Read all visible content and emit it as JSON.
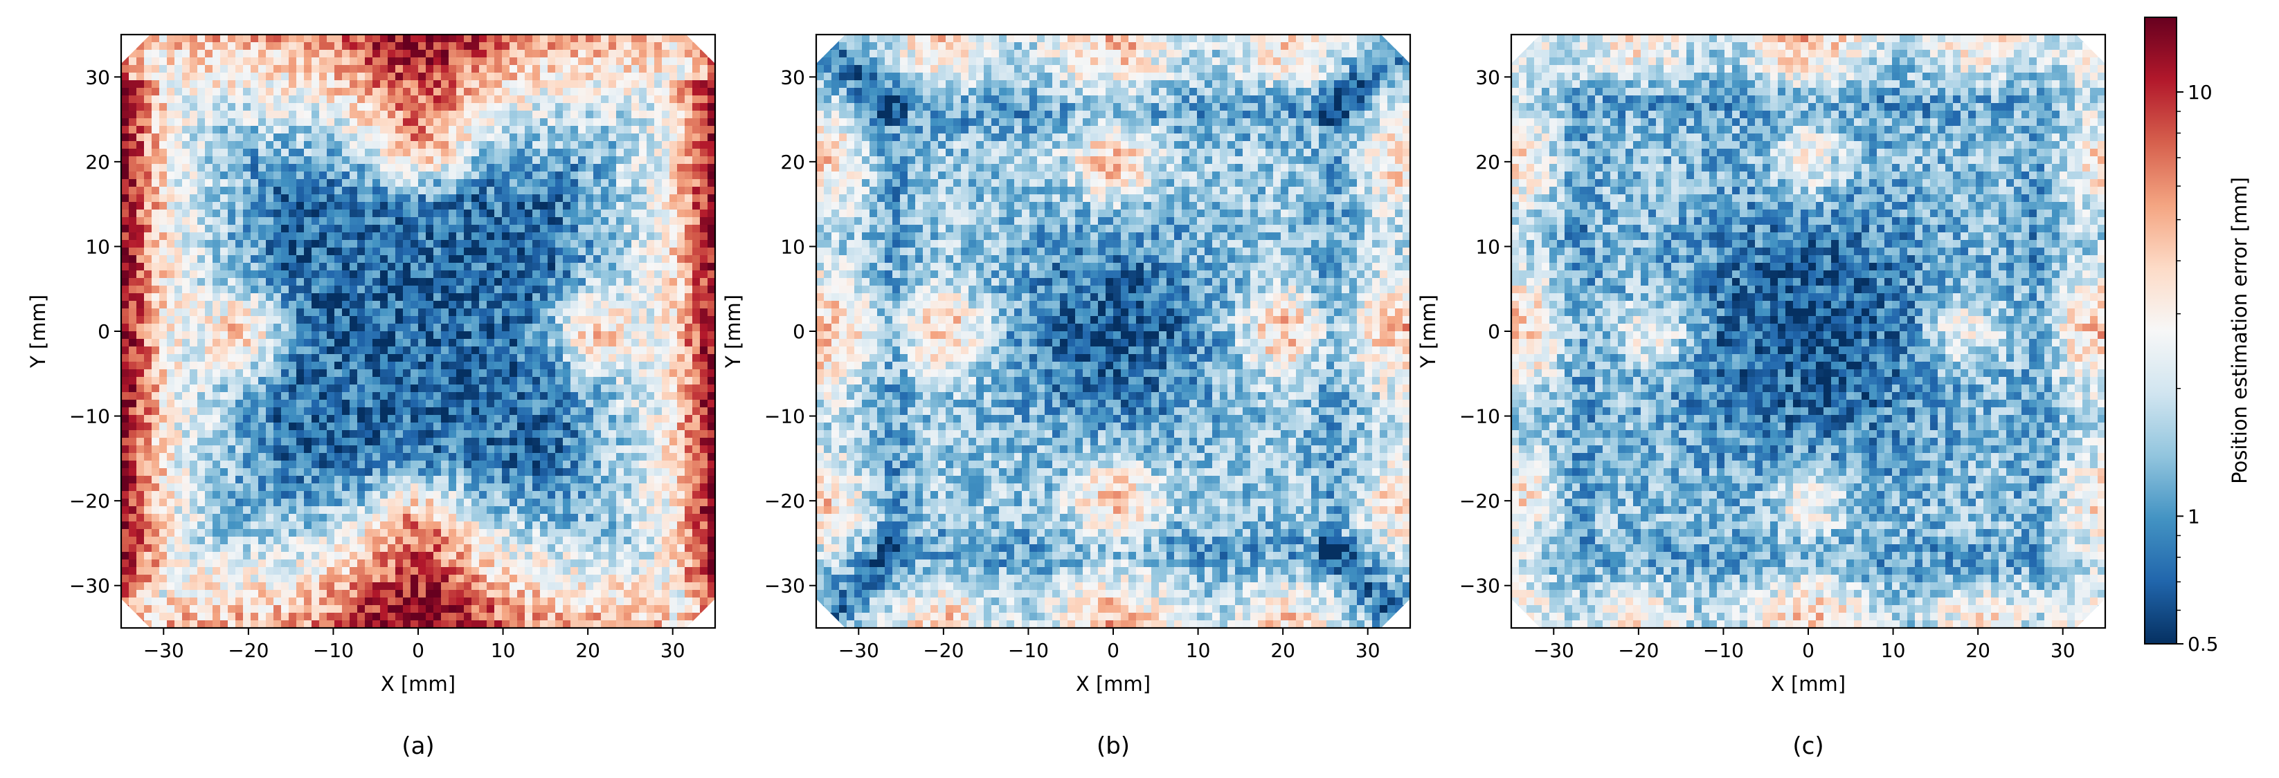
{
  "chart_data": {
    "type": "heatmap",
    "panels": [
      {
        "caption": "(a)",
        "xlabel": "X [mm]",
        "ylabel": "Y [mm]",
        "xlim": [
          -35,
          35
        ],
        "ylim": [
          -35,
          35
        ],
        "xticks": [
          "−30",
          "−20",
          "−10",
          "0",
          "10",
          "20",
          "30"
        ],
        "yticks": [
          "30",
          "20",
          "10",
          "0",
          "−10",
          "−20",
          "−30"
        ],
        "pattern": "error low (~0.5–1 mm) in a central star-shaped region, rising toward the edges; highest (>10 mm) along the outer borders, strongest at left, right and bottom edges"
      },
      {
        "caption": "(b)",
        "xlabel": "X [mm]",
        "ylabel": "Y [mm]",
        "xlim": [
          -35,
          35
        ],
        "ylim": [
          -35,
          35
        ],
        "xticks": [
          "−30",
          "−20",
          "−10",
          "0",
          "10",
          "20",
          "30"
        ],
        "yticks": [
          "30",
          "20",
          "10",
          "0",
          "−10",
          "−20",
          "−30"
        ],
        "pattern": "low-error center and a low-error square ring at about ±25 mm with diagonal low-error streaks to the corners; moderate error lobes at (0, ±20), (±20, 0) and along edge midpoints"
      },
      {
        "caption": "(c)",
        "xlabel": "X [mm]",
        "ylabel": "Y [mm]",
        "xlim": [
          -35,
          35
        ],
        "ylim": [
          -35,
          35
        ],
        "xticks": [
          "−30",
          "−20",
          "−10",
          "0",
          "10",
          "20",
          "30"
        ],
        "yticks": [
          "30",
          "20",
          "10",
          "0",
          "−10",
          "−20",
          "−30"
        ],
        "pattern": "similar to (b) with a larger low-error central region; moderate-error lobes at (0, ±20), (±20, 0), edge midpoints and corners"
      }
    ],
    "colorbar": {
      "label": "Position estimation error [mm]",
      "scale": "log",
      "range": [
        0.5,
        15
      ],
      "ticks": [
        "0.5",
        "1",
        "10"
      ],
      "colormap": "RdBu_r"
    },
    "grid": false
  },
  "colors": {
    "low": "#053061",
    "mid": "#f7f7f7",
    "high": "#67001f"
  }
}
